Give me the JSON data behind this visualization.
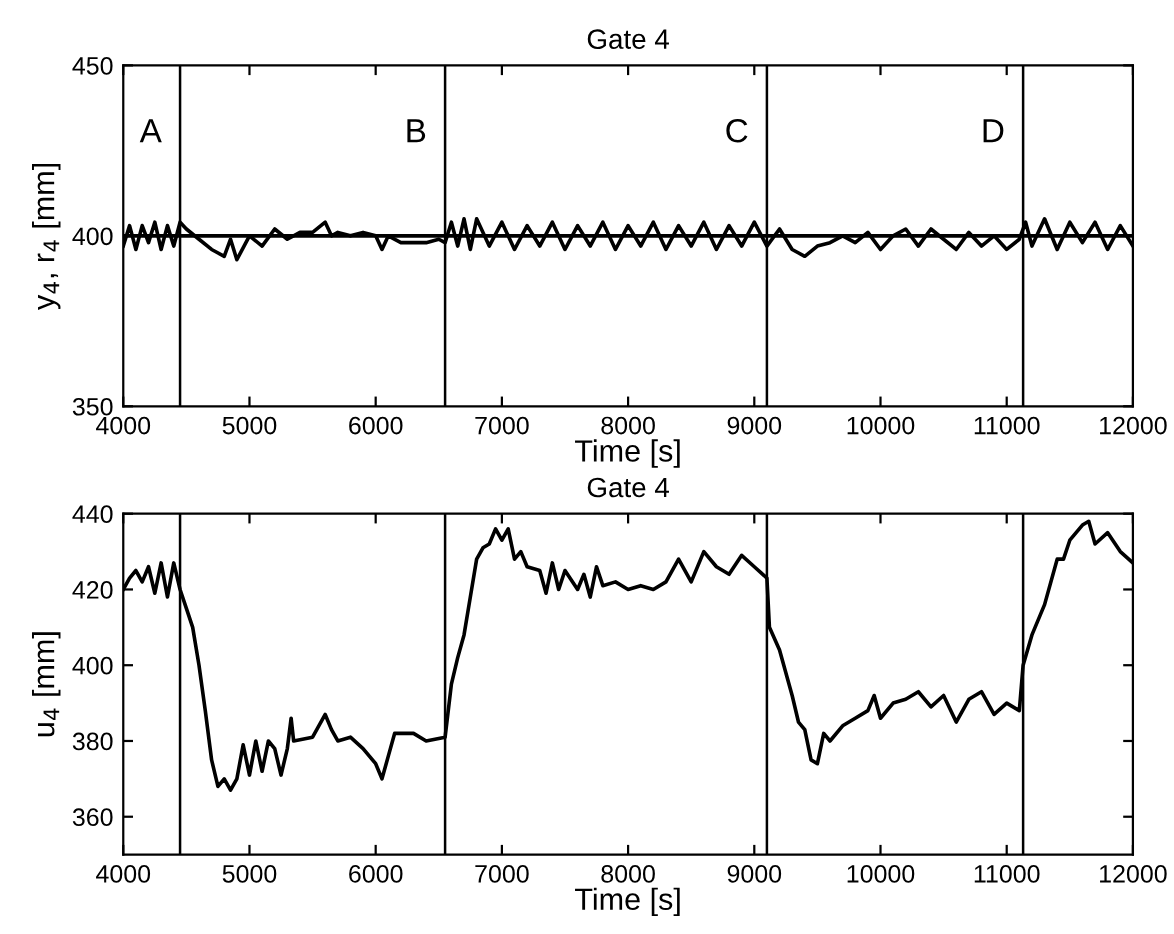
{
  "chart_data": [
    {
      "type": "line",
      "title": "Gate 4",
      "xlabel": "Time [s]",
      "ylabel": "y$_{4}$, r$_{4}$ [mm]",
      "xlim": [
        4000,
        12000
      ],
      "ylim": [
        350,
        450
      ],
      "xticks": [
        4000,
        5000,
        6000,
        7000,
        8000,
        9000,
        10000,
        11000,
        12000
      ],
      "yticks": [
        350,
        400,
        450
      ],
      "grid": false,
      "legend": false,
      "x": [
        4000,
        4050,
        4100,
        4150,
        4200,
        4250,
        4300,
        4350,
        4400,
        4450,
        4500,
        4600,
        4700,
        4800,
        4850,
        4900,
        5000,
        5100,
        5200,
        5300,
        5400,
        5500,
        5600,
        5650,
        5700,
        5800,
        5900,
        6000,
        6050,
        6100,
        6200,
        6300,
        6400,
        6500,
        6550,
        6600,
        6650,
        6700,
        6750,
        6800,
        6900,
        7000,
        7100,
        7200,
        7300,
        7400,
        7500,
        7600,
        7700,
        7800,
        7900,
        8000,
        8100,
        8200,
        8300,
        8400,
        8500,
        8600,
        8700,
        8800,
        8900,
        9000,
        9100,
        9200,
        9300,
        9400,
        9500,
        9600,
        9700,
        9800,
        9900,
        10000,
        10100,
        10200,
        10300,
        10400,
        10500,
        10600,
        10700,
        10800,
        10900,
        11000,
        11100,
        11150,
        11200,
        11300,
        11400,
        11500,
        11600,
        11700,
        11800,
        11900,
        12000
      ],
      "series": [
        {
          "color": "#000000",
          "values": [
            397,
            403,
            396,
            403,
            398,
            404,
            396,
            403,
            397,
            404,
            402,
            399,
            396,
            394,
            399,
            393,
            400,
            397,
            402,
            399,
            401,
            401,
            404,
            400,
            401,
            400,
            401,
            400,
            396,
            400,
            398,
            398,
            398,
            399,
            398,
            404,
            397,
            405,
            396,
            405,
            397,
            404,
            396,
            403,
            397,
            404,
            396,
            403,
            397,
            404,
            396,
            403,
            397,
            404,
            396,
            403,
            397,
            404,
            396,
            403,
            397,
            404,
            397,
            402,
            396,
            394,
            397,
            398,
            400,
            398,
            401,
            396,
            400,
            402,
            397,
            402,
            399,
            396,
            401,
            397,
            400,
            396,
            399,
            404,
            397,
            405,
            396,
            404,
            398,
            404,
            396,
            403,
            397
          ]
        },
        {
          "color": "#000000",
          "x": [
            4000,
            12000
          ],
          "values": [
            400,
            400
          ]
        }
      ],
      "ref_lines": [
        {
          "axis": "x",
          "value": 4450,
          "label": "A",
          "color": "#000000"
        },
        {
          "axis": "x",
          "value": 6550,
          "label": "B",
          "color": "#000000"
        },
        {
          "axis": "x",
          "value": 9100,
          "label": "C",
          "color": "#000000"
        },
        {
          "axis": "x",
          "value": 11130,
          "label": "D",
          "color": "#000000"
        }
      ]
    },
    {
      "type": "line",
      "title": "Gate 4",
      "xlabel": "Time [s]",
      "ylabel": "u$_{4}$ [mm]",
      "xlim": [
        4000,
        12000
      ],
      "ylim": [
        350,
        440
      ],
      "xticks": [
        4000,
        5000,
        6000,
        7000,
        8000,
        9000,
        10000,
        11000,
        12000
      ],
      "yticks": [
        360,
        380,
        400,
        420,
        440
      ],
      "grid": false,
      "legend": false,
      "x": [
        4000,
        4050,
        4100,
        4150,
        4200,
        4250,
        4300,
        4350,
        4400,
        4450,
        4500,
        4550,
        4600,
        4650,
        4700,
        4750,
        4800,
        4850,
        4900,
        4950,
        5000,
        5050,
        5100,
        5150,
        5200,
        5250,
        5300,
        5330,
        5350,
        5500,
        5600,
        5650,
        5700,
        5800,
        5900,
        6000,
        6050,
        6100,
        6150,
        6300,
        6400,
        6550,
        6600,
        6650,
        6700,
        6750,
        6800,
        6850,
        6900,
        6950,
        7000,
        7050,
        7100,
        7150,
        7200,
        7300,
        7350,
        7400,
        7450,
        7500,
        7600,
        7650,
        7700,
        7750,
        7800,
        7900,
        8000,
        8100,
        8200,
        8300,
        8400,
        8500,
        8600,
        8700,
        8800,
        8900,
        9000,
        9100,
        9120,
        9200,
        9300,
        9350,
        9400,
        9450,
        9500,
        9550,
        9600,
        9700,
        9800,
        9900,
        9950,
        10000,
        10100,
        10200,
        10300,
        10400,
        10500,
        10600,
        10700,
        10800,
        10900,
        11000,
        11100,
        11130,
        11200,
        11300,
        11400,
        11450,
        11500,
        11600,
        11650,
        11700,
        11800,
        11900,
        12000
      ],
      "series": [
        {
          "color": "#000000",
          "values": [
            420,
            423,
            425,
            422,
            426,
            419,
            427,
            418,
            427,
            420,
            415,
            410,
            400,
            388,
            375,
            368,
            370,
            367,
            370,
            379,
            371,
            380,
            372,
            380,
            378,
            371,
            378,
            386,
            380,
            381,
            387,
            383,
            380,
            381,
            378,
            374,
            370,
            376,
            382,
            382,
            380,
            381,
            395,
            402,
            408,
            418,
            428,
            431,
            432,
            436,
            433,
            436,
            428,
            430,
            426,
            425,
            419,
            427,
            420,
            425,
            420,
            424,
            418,
            426,
            421,
            422,
            420,
            421,
            420,
            422,
            428,
            422,
            430,
            426,
            424,
            429,
            426,
            423,
            410,
            404,
            392,
            385,
            383,
            375,
            374,
            382,
            380,
            384,
            386,
            388,
            392,
            386,
            390,
            391,
            393,
            389,
            392,
            385,
            391,
            393,
            387,
            390,
            388,
            400,
            408,
            416,
            428,
            428,
            433,
            437,
            438,
            432,
            435,
            430,
            427
          ]
        }
      ],
      "ref_lines": [
        {
          "axis": "x",
          "value": 4450,
          "color": "#000000"
        },
        {
          "axis": "x",
          "value": 6550,
          "color": "#000000"
        },
        {
          "axis": "x",
          "value": 9100,
          "color": "#000000"
        },
        {
          "axis": "x",
          "value": 11130,
          "color": "#000000"
        }
      ]
    }
  ]
}
